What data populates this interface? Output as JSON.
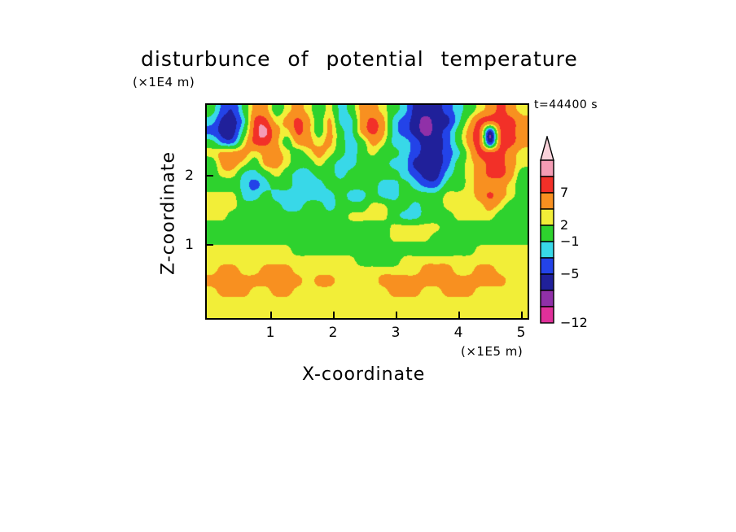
{
  "title": "disturbunce of potential temperature",
  "annotations": {
    "time_label": "t=44400 s",
    "y_units": "(×1E4 m)",
    "x_units": "(×1E5 m)"
  },
  "axes": {
    "x_label": "X-coordinate",
    "y_label": "Z-coordinate",
    "x_ticks": [
      "1",
      "2",
      "3",
      "4",
      "5"
    ],
    "y_ticks": [
      "2",
      "1"
    ]
  },
  "colorbar": {
    "arrow_color": "#f8d2da",
    "cell_colors": [
      "#f49cb4",
      "#f23028",
      "#f89020",
      "#f2ee38",
      "#2ed22e",
      "#38d8e8",
      "#2343e8",
      "#20209a",
      "#9030a8",
      "#e0309a"
    ],
    "labels": [
      {
        "text": "7",
        "cells_from_top": 2
      },
      {
        "text": "2",
        "cells_from_top": 4
      },
      {
        "text": "−1",
        "cells_from_top": 5
      },
      {
        "text": "−5",
        "cells_from_top": 7
      },
      {
        "text": "−12",
        "cells_from_top": 10
      }
    ]
  },
  "chart_data": {
    "type": "heatmap",
    "title": "disturbunce of potential temperature",
    "time": "t=44400 s",
    "xlabel": "X-coordinate (×1E5 m)",
    "ylabel": "Z-coordinate (×1E4 m)",
    "x_range": [
      0,
      5.2
    ],
    "z_range": [
      0,
      3.1
    ],
    "x_ticks": [
      1,
      2,
      3,
      4,
      5
    ],
    "z_ticks": [
      1,
      2
    ],
    "levels": [
      -12,
      -10,
      -7,
      -5,
      -3,
      -1,
      2,
      4,
      7,
      9,
      11
    ],
    "palette": [
      "#e0309a",
      "#9030a8",
      "#20209a",
      "#2343e8",
      "#38d8e8",
      "#2ed22e",
      "#f2ee38",
      "#f89020",
      "#f23028",
      "#f49cb4",
      "#f8d2da"
    ],
    "grid_orientation": "rows top (z max) to bottom (z=0), columns left (x=0) to right (x max)",
    "grid": [
      [
        0,
        -4,
        -5,
        0,
        5,
        5,
        0,
        3,
        5,
        3,
        0,
        3,
        -2,
        0,
        5,
        5,
        3,
        0,
        -2,
        -6,
        -6,
        -6,
        -4,
        -2,
        0,
        3,
        5,
        8,
        5,
        3
      ],
      [
        -2,
        -6,
        -6,
        -2,
        8,
        8,
        3,
        5,
        8,
        5,
        0,
        5,
        -2,
        -2,
        5,
        8,
        5,
        -2,
        -4,
        -6,
        -8,
        -6,
        -6,
        -2,
        3,
        8,
        8,
        8,
        8,
        5
      ],
      [
        -4,
        -6,
        -6,
        0,
        8,
        10,
        5,
        3,
        8,
        5,
        0,
        5,
        0,
        -2,
        5,
        8,
        5,
        -2,
        -4,
        -6,
        -8,
        -6,
        -4,
        0,
        5,
        8,
        -8,
        8,
        8,
        5
      ],
      [
        0,
        -4,
        -4,
        3,
        8,
        8,
        5,
        0,
        5,
        5,
        3,
        5,
        0,
        -2,
        0,
        5,
        3,
        -2,
        -2,
        -4,
        -6,
        -6,
        -4,
        0,
        5,
        8,
        -8,
        8,
        8,
        5
      ],
      [
        3,
        5,
        5,
        5,
        3,
        5,
        5,
        3,
        0,
        3,
        5,
        3,
        0,
        -2,
        0,
        3,
        0,
        0,
        -2,
        -4,
        -6,
        -6,
        -4,
        -2,
        3,
        8,
        8,
        8,
        5,
        3
      ],
      [
        0,
        5,
        5,
        3,
        0,
        5,
        5,
        3,
        0,
        0,
        3,
        0,
        -2,
        -2,
        0,
        0,
        0,
        -2,
        -2,
        -6,
        -6,
        -6,
        -4,
        0,
        3,
        5,
        8,
        8,
        5,
        3
      ],
      [
        0,
        3,
        3,
        -2,
        -2,
        0,
        3,
        0,
        -2,
        -2,
        0,
        0,
        -2,
        0,
        0,
        0,
        0,
        0,
        -2,
        -4,
        -6,
        -6,
        -2,
        0,
        3,
        5,
        8,
        8,
        5,
        0
      ],
      [
        0,
        0,
        0,
        -2,
        -4,
        -2,
        0,
        0,
        -2,
        -2,
        -2,
        0,
        0,
        0,
        0,
        0,
        -2,
        -2,
        0,
        -2,
        -4,
        -4,
        0,
        0,
        3,
        5,
        5,
        5,
        3,
        0
      ],
      [
        3,
        3,
        3,
        -2,
        -2,
        0,
        -2,
        -2,
        -2,
        -2,
        -2,
        -2,
        0,
        -2,
        -2,
        0,
        -2,
        -2,
        0,
        0,
        0,
        0,
        3,
        3,
        3,
        5,
        8,
        5,
        3,
        0
      ],
      [
        3,
        3,
        3,
        0,
        0,
        0,
        0,
        -2,
        -2,
        0,
        0,
        -2,
        0,
        0,
        0,
        3,
        3,
        0,
        0,
        -2,
        0,
        0,
        3,
        3,
        3,
        3,
        5,
        3,
        0,
        0
      ],
      [
        3,
        3,
        0,
        0,
        0,
        0,
        0,
        0,
        0,
        0,
        0,
        0,
        0,
        3,
        3,
        3,
        3,
        0,
        -2,
        -2,
        0,
        0,
        0,
        3,
        3,
        3,
        3,
        0,
        0,
        0
      ],
      [
        0,
        0,
        0,
        0,
        0,
        0,
        0,
        0,
        0,
        0,
        0,
        0,
        0,
        0,
        0,
        0,
        0,
        3,
        3,
        3,
        3,
        3,
        0,
        0,
        0,
        0,
        0,
        0,
        0,
        0
      ],
      [
        0,
        0,
        0,
        0,
        0,
        0,
        0,
        0,
        0,
        0,
        0,
        0,
        0,
        0,
        0,
        0,
        0,
        3,
        3,
        3,
        3,
        0,
        0,
        0,
        0,
        0,
        0,
        0,
        0,
        0
      ],
      [
        3,
        3,
        3,
        3,
        3,
        3,
        3,
        3,
        0,
        0,
        0,
        0,
        0,
        0,
        0,
        0,
        0,
        0,
        0,
        0,
        0,
        0,
        0,
        0,
        0,
        3,
        3,
        3,
        3,
        3
      ],
      [
        3,
        3,
        3,
        3,
        3,
        3,
        3,
        3,
        3,
        3,
        3,
        3,
        3,
        3,
        0,
        0,
        0,
        0,
        3,
        3,
        3,
        3,
        3,
        3,
        3,
        3,
        3,
        3,
        3,
        3
      ],
      [
        3,
        5,
        5,
        3,
        3,
        5,
        5,
        5,
        3,
        3,
        3,
        3,
        3,
        3,
        3,
        3,
        3,
        3,
        3,
        3,
        5,
        5,
        5,
        3,
        3,
        5,
        5,
        3,
        3,
        3
      ],
      [
        5,
        5,
        5,
        5,
        5,
        5,
        5,
        5,
        5,
        3,
        5,
        5,
        3,
        3,
        3,
        3,
        5,
        5,
        5,
        5,
        5,
        5,
        5,
        5,
        5,
        5,
        5,
        5,
        3,
        3
      ],
      [
        3,
        5,
        5,
        5,
        3,
        3,
        5,
        5,
        3,
        3,
        3,
        3,
        3,
        3,
        3,
        3,
        3,
        5,
        5,
        5,
        3,
        3,
        5,
        5,
        5,
        3,
        3,
        3,
        3,
        3
      ],
      [
        3,
        3,
        3,
        3,
        3,
        3,
        3,
        3,
        3,
        3,
        3,
        3,
        3,
        3,
        3,
        3,
        3,
        3,
        3,
        3,
        3,
        3,
        3,
        3,
        3,
        3,
        3,
        3,
        3,
        3
      ],
      [
        3,
        3,
        3,
        3,
        3,
        3,
        3,
        3,
        3,
        3,
        3,
        3,
        3,
        3,
        3,
        3,
        3,
        3,
        3,
        3,
        3,
        3,
        3,
        3,
        3,
        3,
        3,
        3,
        3,
        3
      ]
    ]
  }
}
